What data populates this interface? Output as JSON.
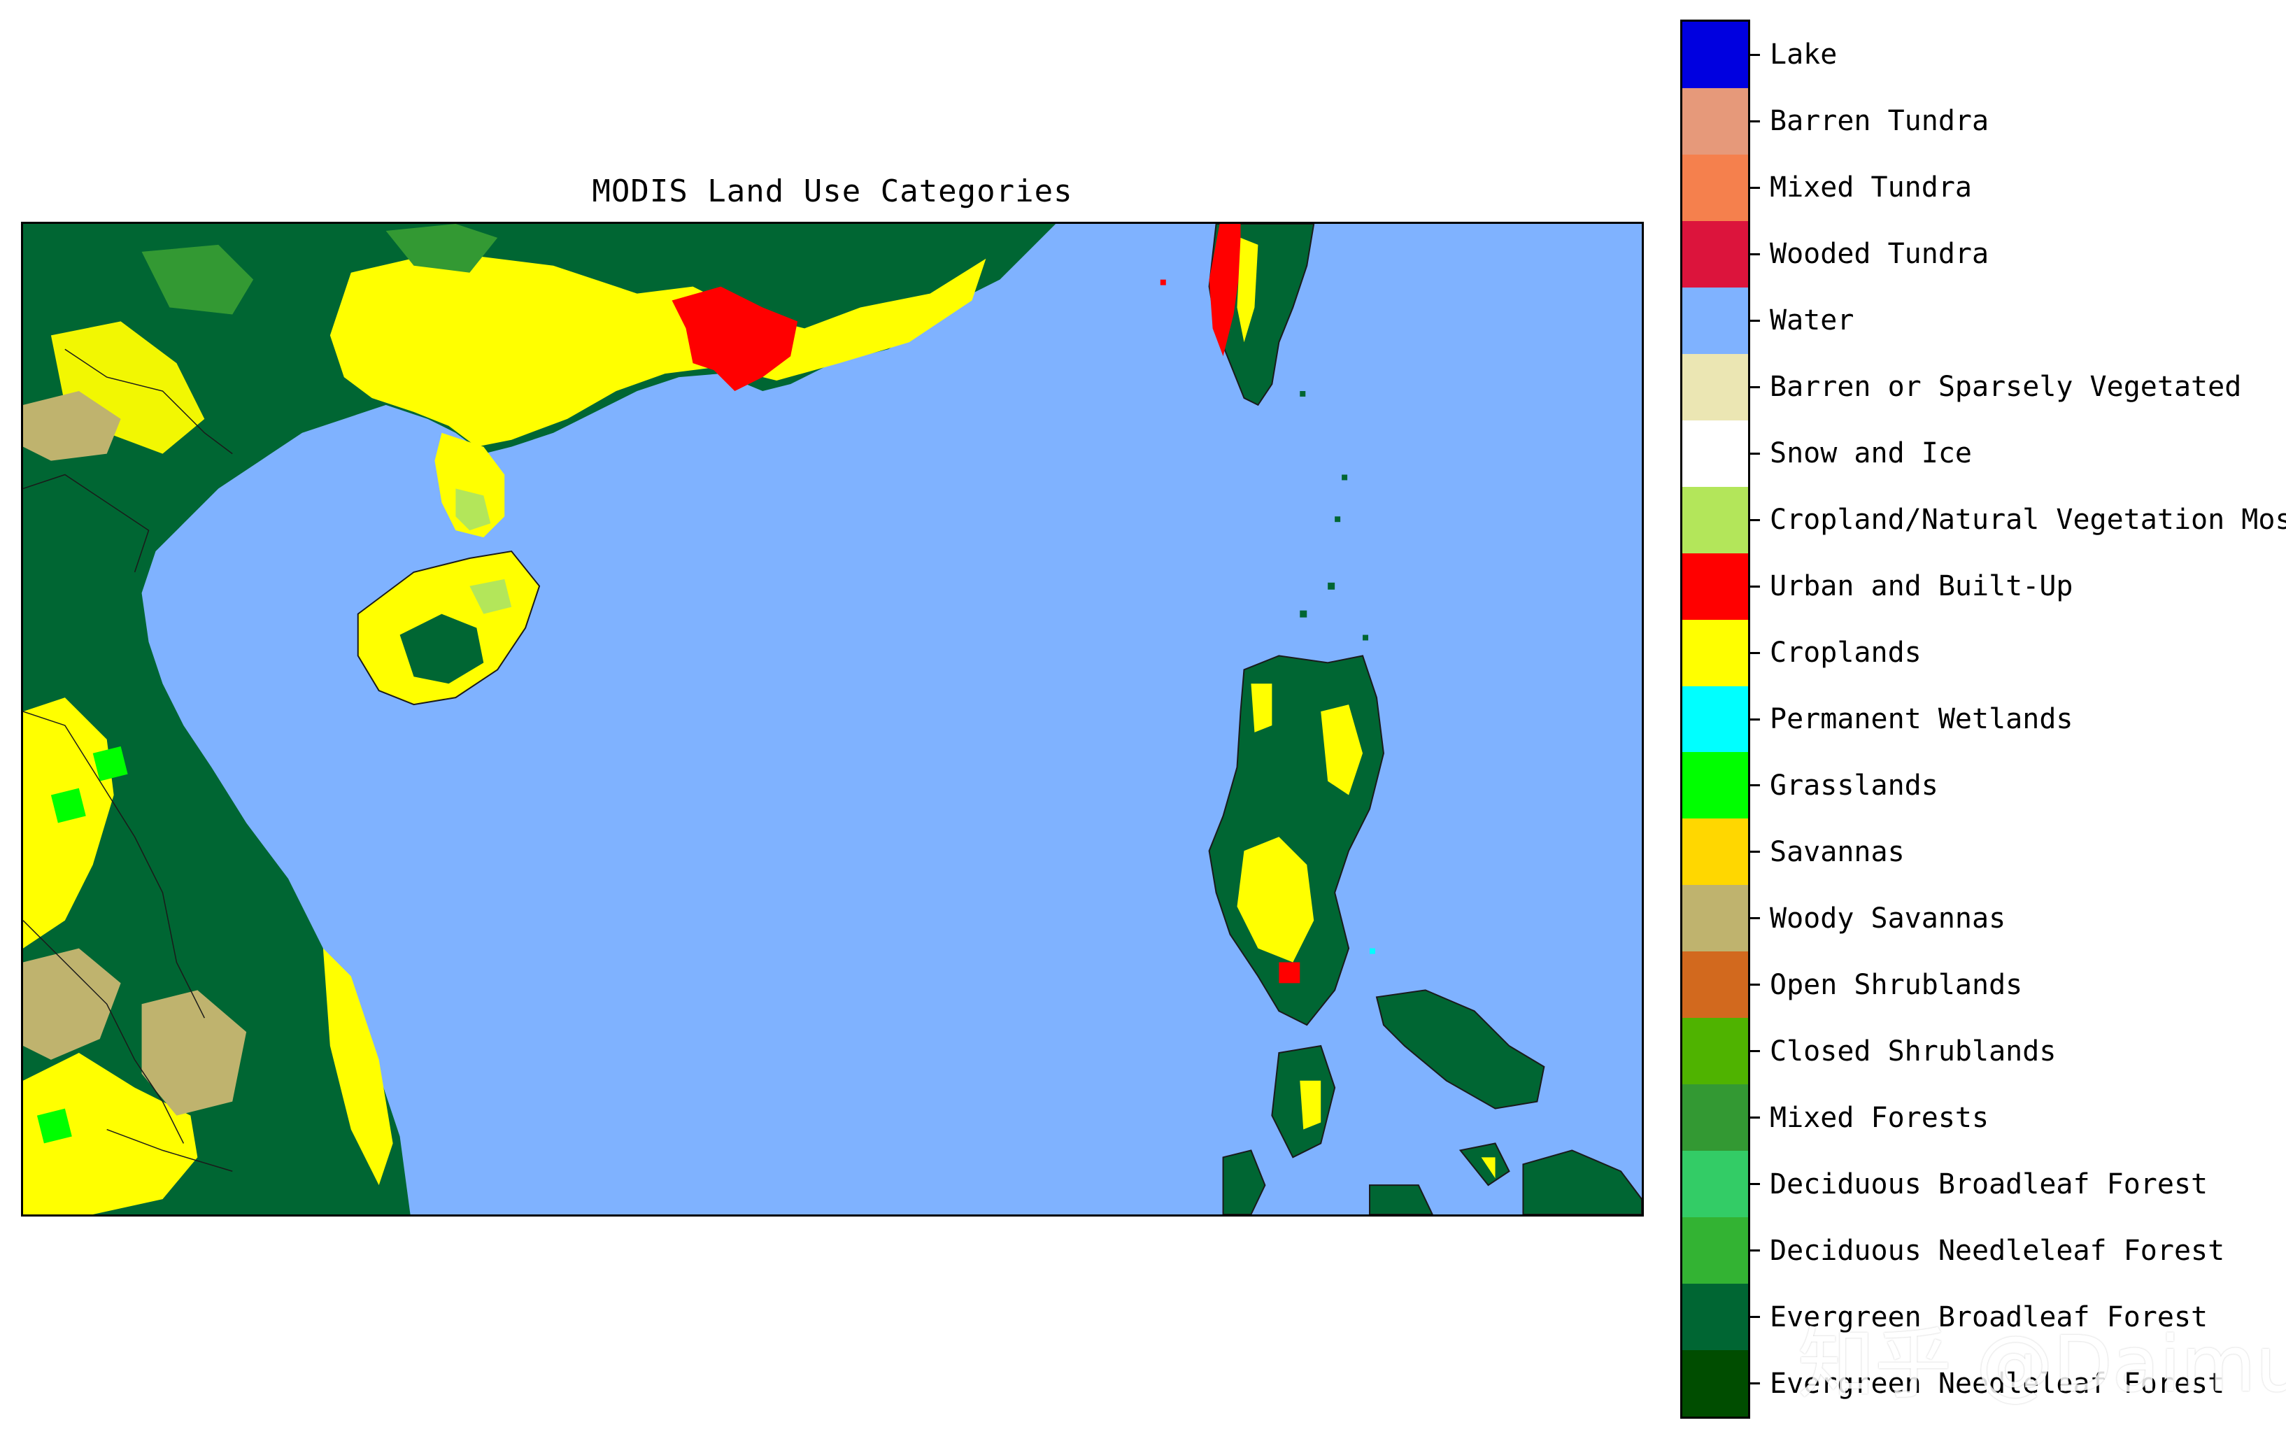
{
  "title": "MODIS Land Use Categories",
  "colors": {
    "water": "#7fb2ff",
    "evergreen_broadleaf": "#006633",
    "croplands": "#ffff00",
    "urban": "#ff0000",
    "mosaic": "#b3e65a",
    "woody_savannas": "#bfb36e",
    "grasslands": "#00ff00",
    "mixed_forests": "#339933",
    "wetlands": "#00ffff",
    "outline": "#1a1a1a"
  },
  "legend": [
    {
      "label": "Lake",
      "color": "#0000e0",
      "icon": "swatch"
    },
    {
      "label": "Barren Tundra",
      "color": "#e6997a",
      "icon": "swatch"
    },
    {
      "label": "Mixed Tundra",
      "color": "#f5804d",
      "icon": "swatch"
    },
    {
      "label": "Wooded Tundra",
      "color": "#dc143c",
      "icon": "swatch"
    },
    {
      "label": "Water",
      "color": "#7fb2ff",
      "icon": "swatch"
    },
    {
      "label": "Barren or Sparsely Vegetated",
      "color": "#ebe6b3",
      "icon": "swatch"
    },
    {
      "label": "Snow and Ice",
      "color": "#ffffff",
      "icon": "swatch"
    },
    {
      "label": "Cropland/Natural Vegetation Mosaic",
      "color": "#b3e65a",
      "icon": "swatch"
    },
    {
      "label": "Urban and Built-Up",
      "color": "#ff0000",
      "icon": "swatch"
    },
    {
      "label": "Croplands",
      "color": "#ffff00",
      "icon": "swatch"
    },
    {
      "label": "Permanent Wetlands",
      "color": "#00ffff",
      "icon": "swatch"
    },
    {
      "label": "Grasslands",
      "color": "#00ff00",
      "icon": "swatch"
    },
    {
      "label": "Savannas",
      "color": "#ffd700",
      "icon": "swatch"
    },
    {
      "label": "Woody Savannas",
      "color": "#bfb36e",
      "icon": "swatch"
    },
    {
      "label": "Open Shrublands",
      "color": "#d2691e",
      "icon": "swatch"
    },
    {
      "label": "Closed Shrublands",
      "color": "#4fb300",
      "icon": "swatch"
    },
    {
      "label": "Mixed Forests",
      "color": "#339933",
      "icon": "swatch"
    },
    {
      "label": "Deciduous Broadleaf Forest",
      "color": "#33cc66",
      "icon": "swatch"
    },
    {
      "label": "Deciduous Needleleaf Forest",
      "color": "#33b333",
      "icon": "swatch"
    },
    {
      "label": "Evergreen Broadleaf Forest",
      "color": "#006633",
      "icon": "swatch"
    },
    {
      "label": "Evergreen Needleleaf Forest",
      "color": "#004d00",
      "icon": "swatch"
    }
  ],
  "watermark": "知乎 @Daimu"
}
